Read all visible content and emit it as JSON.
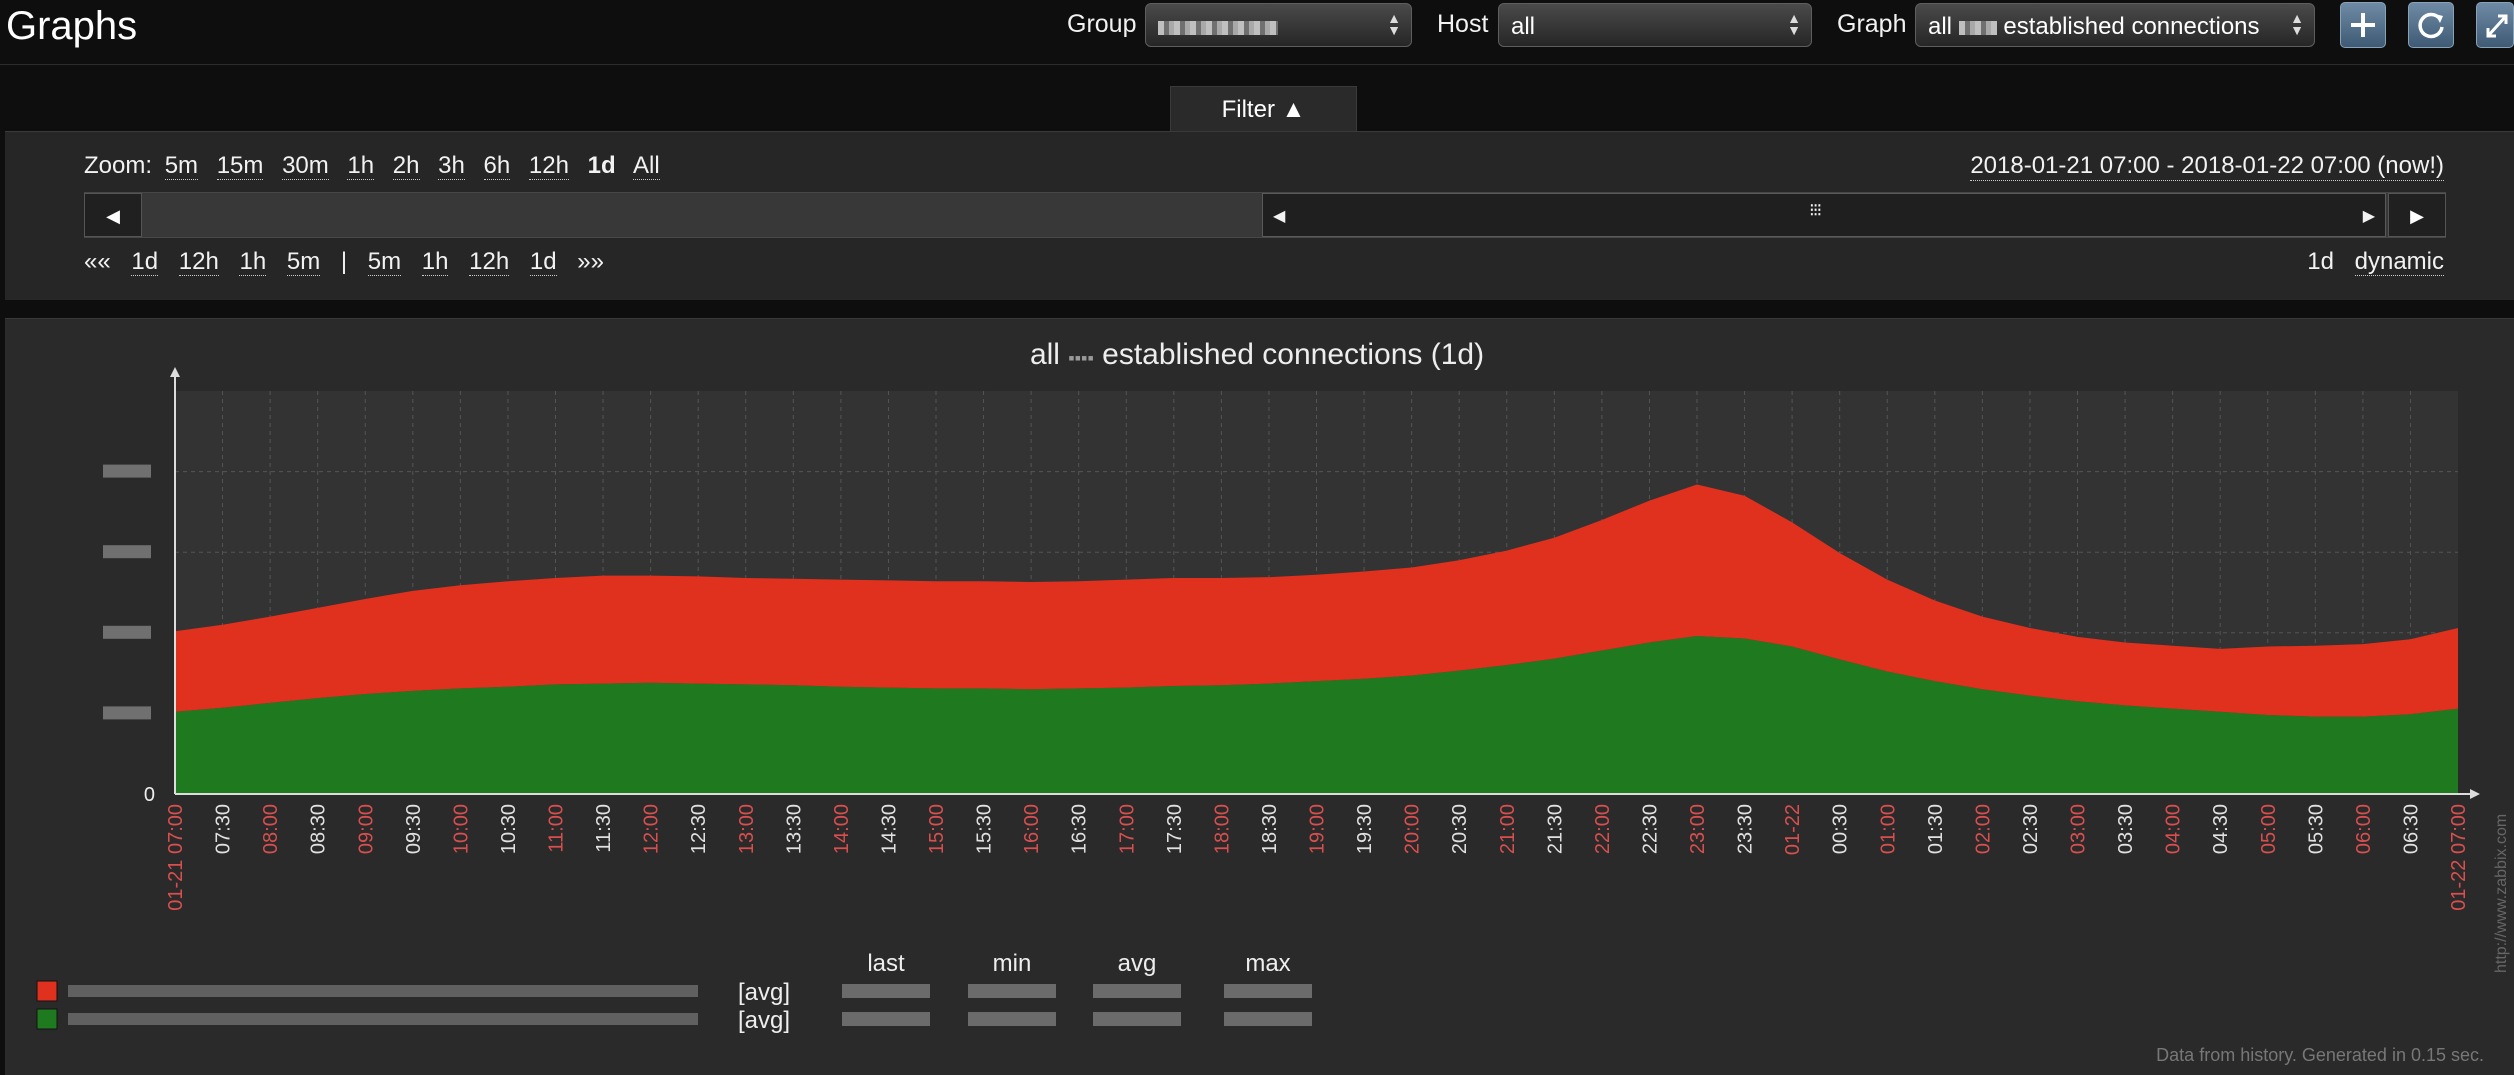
{
  "header": {
    "title": "Graphs",
    "group_label": "Group",
    "host_label": "Host",
    "host_value": "all",
    "graph_label": "Graph",
    "graph_value_prefix": "all",
    "graph_value_suffix": "established connections"
  },
  "toolbar": {
    "icons": [
      "plus-icon",
      "refresh-icon",
      "fullscreen-icon"
    ]
  },
  "filter": {
    "tab_label": "Filter ▲",
    "zoom_label": "Zoom:",
    "zoom_options": [
      "5m",
      "15m",
      "30m",
      "1h",
      "2h",
      "3h",
      "6h",
      "12h",
      "1d",
      "All"
    ],
    "zoom_active": "1d",
    "range_text": "2018-01-21 07:00 - 2018-01-22 07:00 (now!)",
    "nav_back": [
      "««",
      "1d",
      "12h",
      "1h",
      "5m"
    ],
    "nav_separator": "|",
    "nav_fwd": [
      "5m",
      "1h",
      "12h",
      "1d",
      "»»"
    ],
    "period": "1d",
    "mode": "dynamic"
  },
  "graph": {
    "title_prefix": "all",
    "title_suffix": "established connections (1d)",
    "legend": [
      {
        "color": "#e0301e",
        "func": "[avg]"
      },
      {
        "color": "#1f7a1f",
        "func": "[avg]"
      }
    ],
    "stat_headers": [
      "last",
      "min",
      "avg",
      "max"
    ],
    "watermark": "http://www.zabbix.com",
    "footer": "Data from history. Generated in 0.15 sec."
  },
  "chart_data": {
    "type": "area",
    "stacked": true,
    "grid": true,
    "ylim": [
      0,
      5
    ],
    "y_ticks": [
      "0"
    ],
    "x": [
      "01-21 07:00",
      "07:30",
      "08:00",
      "08:30",
      "09:00",
      "09:30",
      "10:00",
      "10:30",
      "11:00",
      "11:30",
      "12:00",
      "12:30",
      "13:00",
      "13:30",
      "14:00",
      "14:30",
      "15:00",
      "15:30",
      "16:00",
      "16:30",
      "17:00",
      "17:30",
      "18:00",
      "18:30",
      "19:00",
      "19:30",
      "20:00",
      "20:30",
      "21:00",
      "21:30",
      "22:00",
      "22:30",
      "23:00",
      "23:30",
      "01-22",
      "00:30",
      "01:00",
      "01:30",
      "02:00",
      "02:30",
      "03:00",
      "03:30",
      "04:00",
      "04:30",
      "05:00",
      "05:30",
      "06:00",
      "06:30",
      "01-22 07:00"
    ],
    "x_label_colors": {
      "hour": "#d94f4f",
      "half": "#e0e0e0"
    },
    "series": [
      {
        "color": "#1f7a1f",
        "values": [
          1.02,
          1.07,
          1.13,
          1.19,
          1.24,
          1.28,
          1.31,
          1.33,
          1.36,
          1.37,
          1.38,
          1.37,
          1.36,
          1.35,
          1.33,
          1.32,
          1.31,
          1.31,
          1.3,
          1.31,
          1.32,
          1.34,
          1.35,
          1.37,
          1.4,
          1.43,
          1.47,
          1.53,
          1.6,
          1.68,
          1.78,
          1.88,
          1.96,
          1.93,
          1.83,
          1.67,
          1.52,
          1.4,
          1.3,
          1.22,
          1.15,
          1.1,
          1.06,
          1.02,
          0.98,
          0.96,
          0.96,
          0.99,
          1.06
        ]
      },
      {
        "color": "#e0301e",
        "values": [
          1.0,
          1.03,
          1.07,
          1.12,
          1.18,
          1.24,
          1.28,
          1.31,
          1.32,
          1.34,
          1.33,
          1.33,
          1.32,
          1.32,
          1.33,
          1.33,
          1.33,
          1.33,
          1.33,
          1.33,
          1.34,
          1.34,
          1.33,
          1.32,
          1.32,
          1.33,
          1.34,
          1.37,
          1.42,
          1.5,
          1.62,
          1.76,
          1.88,
          1.77,
          1.54,
          1.32,
          1.14,
          1.0,
          0.9,
          0.84,
          0.8,
          0.78,
          0.78,
          0.78,
          0.85,
          0.88,
          0.9,
          0.93,
          1.0
        ]
      }
    ]
  }
}
